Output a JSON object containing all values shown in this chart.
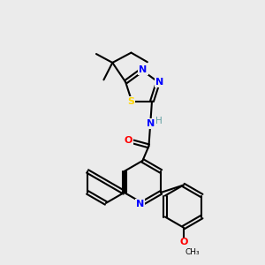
{
  "bg_color": "#ebebeb",
  "bond_color": "#000000",
  "atom_colors": {
    "N": "#0000FF",
    "O": "#FF0000",
    "S": "#FFD700",
    "H": "#5F9EA0",
    "C": "#000000"
  },
  "figsize": [
    3.0,
    3.0
  ],
  "dpi": 100
}
